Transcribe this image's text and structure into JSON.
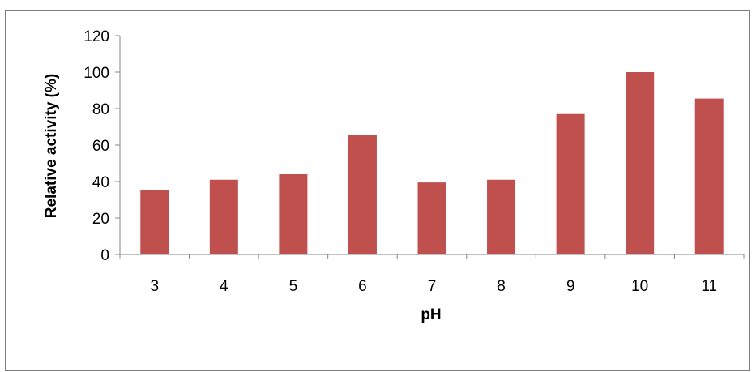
{
  "chart_data": {
    "type": "bar",
    "categories": [
      "3",
      "4",
      "5",
      "6",
      "7",
      "8",
      "9",
      "10",
      "11"
    ],
    "values": [
      35.5,
      41,
      44,
      65.5,
      39.5,
      41,
      77,
      100,
      85.5
    ],
    "title": "",
    "xlabel": "pH",
    "ylabel": "Relative activity (%)",
    "ylim": [
      0,
      120
    ],
    "yticks": [
      "0",
      "20",
      "40",
      "60",
      "80",
      "100",
      "120"
    ],
    "grid": false,
    "legend": "none",
    "bar_color": "#c0504d"
  }
}
